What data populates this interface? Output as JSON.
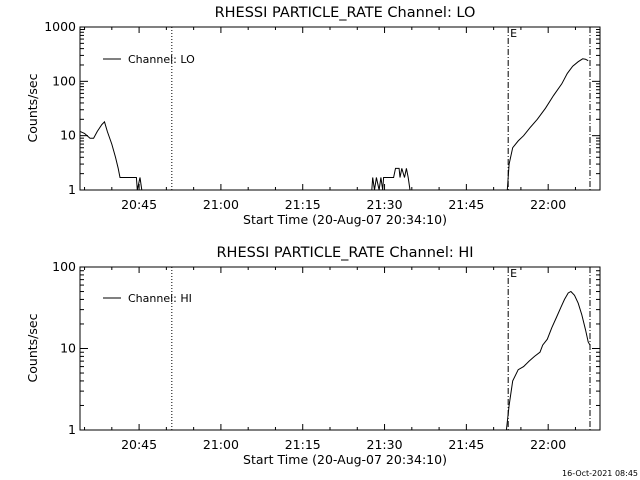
{
  "footer": {
    "timestamp": "16-Oct-2021 08:45"
  },
  "chart_data": [
    {
      "type": "line",
      "title": "RHESSI PARTICLE_RATE Channel: LO",
      "xlabel": "Start Time (20-Aug-07 20:34:10)",
      "ylabel": "Counts/sec",
      "x_unit": "HH:MM (UT, 20-Aug-07)",
      "xlim": [
        "20:34:10",
        "22:09:30"
      ],
      "ylim": [
        1,
        1000
      ],
      "yscale": "log",
      "xticks": [
        "20:45",
        "21:00",
        "21:15",
        "21:30",
        "21:45",
        "22:00"
      ],
      "yticks": [
        "1",
        "10",
        "100",
        "1000"
      ],
      "grid": false,
      "legend": {
        "position": "top-left",
        "entries": [
          "Channel: LO"
        ]
      },
      "markers": [
        {
          "time": "20:51:00",
          "style": "dotted",
          "label": ""
        },
        {
          "time": "21:52:40",
          "style": "dash-dot",
          "label": "E"
        },
        {
          "time": "22:07:40",
          "style": "dash-dot",
          "label": ""
        }
      ],
      "series": [
        {
          "name": "Channel: LO",
          "points": [
            [
              "20:34:10",
              12
            ],
            [
              "20:35:00",
              11
            ],
            [
              "20:36:00",
              9
            ],
            [
              "20:36:40",
              9
            ],
            [
              "20:37:20",
              12
            ],
            [
              "20:38:10",
              16
            ],
            [
              "20:38:40",
              18
            ],
            [
              "20:39:10",
              12
            ],
            [
              "20:40:00",
              7
            ],
            [
              "20:40:40",
              4
            ],
            [
              "20:41:10",
              2.5
            ],
            [
              "20:41:30",
              1.7
            ],
            [
              "20:43:00",
              1.7
            ],
            [
              "20:44:30",
              1.7
            ],
            [
              "20:44:40",
              1
            ],
            [
              "20:45:10",
              1.7
            ],
            [
              "20:45:30",
              1
            ]
          ]
        },
        {
          "name": "",
          "points": [
            [
              "21:27:40",
              1
            ],
            [
              "21:27:50",
              1.7
            ],
            [
              "21:28:10",
              1
            ],
            [
              "21:28:30",
              1.7
            ],
            [
              "21:29:00",
              1
            ],
            [
              "21:29:20",
              1.7
            ],
            [
              "21:29:40",
              1
            ],
            [
              "21:29:50",
              1.7
            ],
            [
              "21:31:40",
              1.7
            ],
            [
              "21:32:00",
              2.5
            ],
            [
              "21:32:40",
              2.5
            ],
            [
              "21:32:50",
              1.7
            ],
            [
              "21:33:10",
              2.5
            ],
            [
              "21:33:40",
              1.7
            ],
            [
              "21:34:00",
              2.5
            ],
            [
              "21:34:20",
              1.7
            ],
            [
              "21:34:40",
              1
            ]
          ]
        },
        {
          "name": "",
          "points": [
            [
              "21:52:30",
              1
            ],
            [
              "21:52:50",
              3
            ],
            [
              "21:53:30",
              6
            ],
            [
              "21:54:30",
              8
            ],
            [
              "21:55:30",
              10
            ],
            [
              "21:56:40",
              14
            ],
            [
              "21:58:00",
              20
            ],
            [
              "21:59:30",
              32
            ],
            [
              "22:01:00",
              55
            ],
            [
              "22:02:30",
              90
            ],
            [
              "22:03:30",
              140
            ],
            [
              "22:04:30",
              190
            ],
            [
              "22:05:30",
              230
            ],
            [
              "22:06:20",
              260
            ],
            [
              "22:06:50",
              255
            ],
            [
              "22:07:20",
              240
            ]
          ]
        }
      ]
    },
    {
      "type": "line",
      "title": "RHESSI PARTICLE_RATE Channel: HI",
      "xlabel": "Start Time (20-Aug-07 20:34:10)",
      "ylabel": "Counts/sec",
      "x_unit": "HH:MM (UT, 20-Aug-07)",
      "xlim": [
        "20:34:10",
        "22:09:30"
      ],
      "ylim": [
        1,
        100
      ],
      "yscale": "log",
      "xticks": [
        "20:45",
        "21:00",
        "21:15",
        "21:30",
        "21:45",
        "22:00"
      ],
      "yticks": [
        "1",
        "10",
        "100"
      ],
      "grid": false,
      "legend": {
        "position": "top-left",
        "entries": [
          "Channel: HI"
        ]
      },
      "markers": [
        {
          "time": "20:51:00",
          "style": "dotted",
          "label": ""
        },
        {
          "time": "21:52:40",
          "style": "dash-dot",
          "label": "E"
        },
        {
          "time": "22:07:40",
          "style": "dash-dot",
          "label": ""
        }
      ],
      "series": [
        {
          "name": "Channel: HI",
          "points": [
            [
              "21:52:20",
              1
            ],
            [
              "21:52:50",
              2
            ],
            [
              "21:53:30",
              4
            ],
            [
              "21:54:30",
              5.5
            ],
            [
              "21:55:30",
              6
            ],
            [
              "21:56:30",
              7
            ],
            [
              "21:57:30",
              8
            ],
            [
              "21:58:30",
              9
            ],
            [
              "21:59:00",
              11
            ],
            [
              "21:59:50",
              13
            ],
            [
              "22:00:40",
              18
            ],
            [
              "22:01:30",
              24
            ],
            [
              "22:02:20",
              32
            ],
            [
              "22:03:00",
              40
            ],
            [
              "22:03:40",
              48
            ],
            [
              "22:04:10",
              50
            ],
            [
              "22:04:50",
              45
            ],
            [
              "22:05:30",
              36
            ],
            [
              "22:06:10",
              26
            ],
            [
              "22:06:50",
              17
            ],
            [
              "22:07:20",
              12
            ],
            [
              "22:07:40",
              11
            ]
          ]
        }
      ]
    }
  ]
}
